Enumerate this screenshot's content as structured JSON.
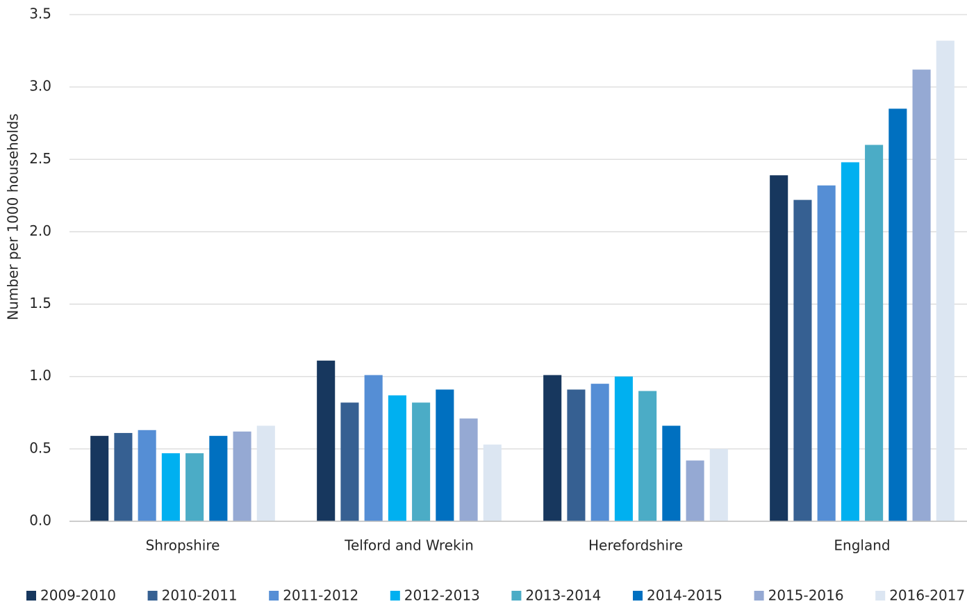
{
  "chart_data": {
    "type": "bar",
    "y_label": "Number per 1000 households",
    "categories": [
      "Shropshire",
      "Telford and Wrekin",
      "Herefordshire",
      "England"
    ],
    "series": [
      {
        "name": "2009-2010",
        "color": "#17375e",
        "values": [
          0.59,
          1.11,
          1.01,
          2.39
        ]
      },
      {
        "name": "2010-2011",
        "color": "#366092",
        "values": [
          0.61,
          0.82,
          0.91,
          2.22
        ]
      },
      {
        "name": "2011-2012",
        "color": "#558ed5",
        "values": [
          0.63,
          1.01,
          0.95,
          2.32
        ]
      },
      {
        "name": "2012-2013",
        "color": "#00b0f0",
        "values": [
          0.47,
          0.87,
          1.0,
          2.48
        ]
      },
      {
        "name": "2013-2014",
        "color": "#4bacc6",
        "values": [
          0.47,
          0.82,
          0.9,
          2.6
        ]
      },
      {
        "name": "2014-2015",
        "color": "#0070c0",
        "values": [
          0.59,
          0.91,
          0.66,
          2.85
        ]
      },
      {
        "name": "2015-2016",
        "color": "#95a9d3",
        "values": [
          0.62,
          0.71,
          0.42,
          3.12
        ]
      },
      {
        "name": "2016-2017",
        "color": "#dce6f2",
        "values": [
          0.66,
          0.53,
          0.5,
          3.32
        ]
      }
    ],
    "ylim": [
      0,
      3.5
    ],
    "yticks": [
      {
        "value": 0,
        "label": "0.0"
      },
      0.5,
      {
        "value": 1,
        "label": "1.0"
      },
      1.5,
      {
        "value": 2,
        "label": "2.0"
      },
      2.5,
      {
        "value": 3,
        "label": "3.0"
      },
      3.5
    ],
    "grid": true,
    "legend": "bottom"
  }
}
